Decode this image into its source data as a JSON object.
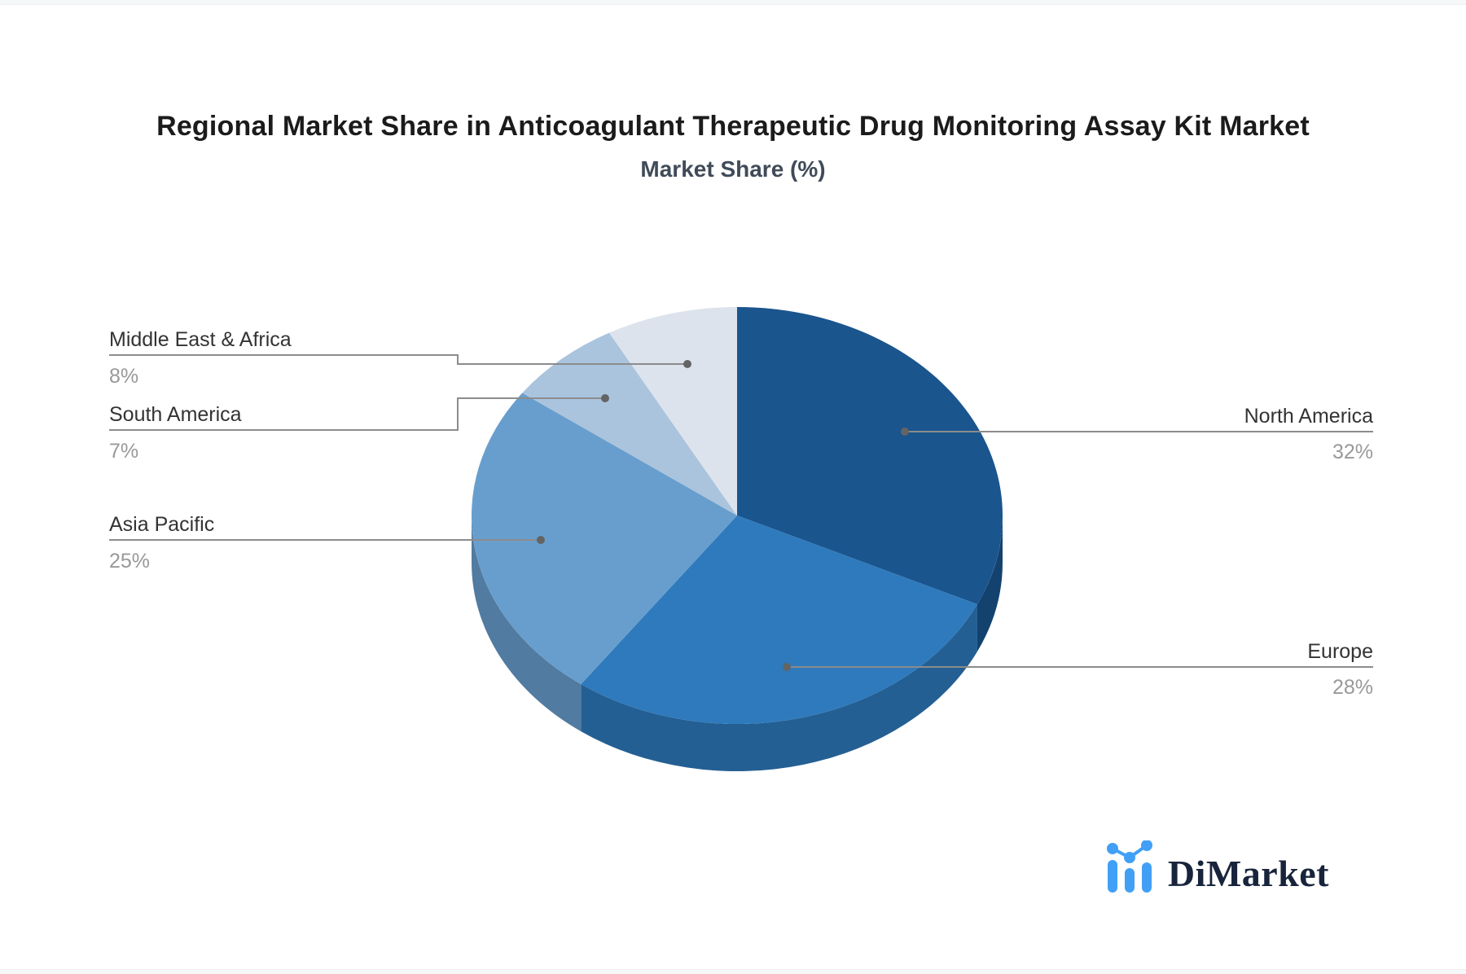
{
  "chart_data": {
    "type": "pie",
    "style": "3d-pie",
    "title": "Regional Market Share in Anticoagulant Therapeutic Drug Monitoring Assay Kit Market",
    "subtitle": "Market Share (%)",
    "unit": "%",
    "labels": [
      "North America",
      "Europe",
      "Asia Pacific",
      "South America",
      "Middle East & Africa"
    ],
    "values": [
      32,
      28,
      25,
      7,
      8
    ],
    "colors": [
      "#1a558e",
      "#2e7abc",
      "#689ecd",
      "#aac4de",
      "#dde3ec"
    ],
    "start_angle_deg": 0,
    "direction": "clockwise",
    "labels_position": "outside-callouts"
  },
  "branding": {
    "logo_text": "DiMarket",
    "logo_icon": "bar-chart-line-icon",
    "logo_icon_color": "#41a0f5",
    "logo_text_color": "#18243c"
  },
  "theme": {
    "background": "#ffffff",
    "edge_strip": "#f6f7f8",
    "title_color": "#1b1b1b",
    "subtitle_color": "#404b59",
    "label_color": "#333333",
    "value_color": "#999999",
    "leader_line_color": "#8c8c8c",
    "leader_dot_color": "#646464"
  }
}
